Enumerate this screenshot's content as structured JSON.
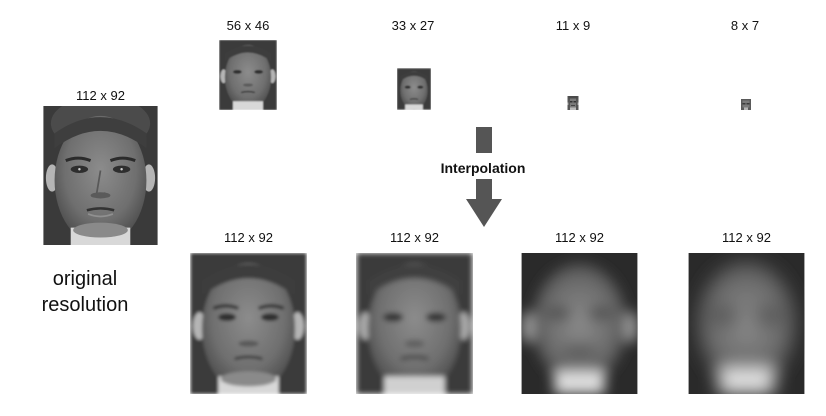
{
  "original": {
    "size_label": "112 x 92",
    "caption_line1": "original",
    "caption_line2": "resolution"
  },
  "downsampled": [
    {
      "size_label": "56 x 46"
    },
    {
      "size_label": "33 x 27"
    },
    {
      "size_label": "11 x 9"
    },
    {
      "size_label": "8 x 7"
    }
  ],
  "interpolated": [
    {
      "size_label": "112 x 92"
    },
    {
      "size_label": "112 x 92"
    },
    {
      "size_label": "112 x 92"
    },
    {
      "size_label": "112 x 92"
    }
  ],
  "interpolation_label": "Interpolation",
  "colors": {
    "arrow": "#555555",
    "background": "#ffffff",
    "text": "#111111"
  }
}
